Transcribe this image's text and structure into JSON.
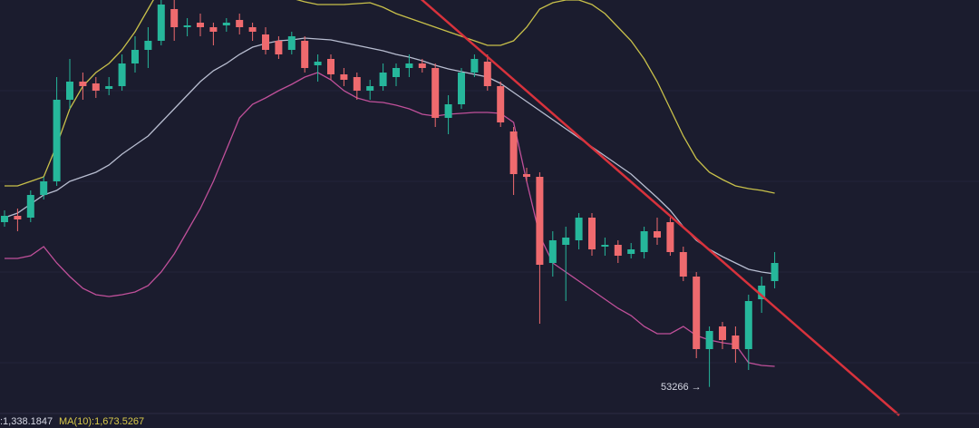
{
  "chart_data": {
    "type": "candlestick",
    "ylim": [
      51000,
      74600
    ],
    "up_color": "#26b79b",
    "down_color": "#ef6a6e",
    "open": [
      62350,
      62700,
      62600,
      63850,
      64600,
      69100,
      70100,
      70000,
      69700,
      69850,
      71100,
      71850,
      72350,
      74100,
      73100,
      73350,
      73100,
      73200,
      73500,
      73100,
      72700,
      72350,
      71850,
      72350,
      71000,
      71350,
      70500,
      70350,
      69600,
      69850,
      70350,
      70850,
      71100,
      70850,
      68100,
      68850,
      70600,
      71200,
      69850,
      67350,
      65000,
      64850,
      60100,
      61100,
      61350,
      62600,
      61000,
      61100,
      60600,
      60700,
      61850,
      62350,
      60700,
      59350,
      55350,
      56600,
      56100,
      55350,
      58100,
      59100
    ],
    "high": [
      63000,
      63100,
      64100,
      64850,
      70350,
      71350,
      70600,
      70350,
      70350,
      71600,
      72600,
      73100,
      74600,
      74600,
      73600,
      73850,
      73350,
      73600,
      73850,
      73350,
      73100,
      72600,
      72850,
      72600,
      71600,
      71600,
      70850,
      70600,
      70200,
      71100,
      71100,
      71600,
      71350,
      71100,
      69350,
      70850,
      71600,
      71600,
      70100,
      67600,
      65350,
      65100,
      61850,
      62100,
      62850,
      62850,
      61500,
      61350,
      61200,
      62100,
      62600,
      62600,
      61000,
      59600,
      56600,
      56850,
      56600,
      58350,
      59350,
      60700
    ],
    "low": [
      62100,
      61850,
      62350,
      63600,
      64350,
      68600,
      69100,
      69200,
      69350,
      69600,
      70600,
      70850,
      72100,
      72350,
      72600,
      72600,
      72100,
      72850,
      72700,
      72350,
      71600,
      71350,
      71600,
      70600,
      70100,
      70200,
      69850,
      69100,
      69100,
      69600,
      69850,
      70350,
      70600,
      67600,
      67200,
      68600,
      70350,
      69600,
      67600,
      63850,
      64600,
      56750,
      59350,
      58000,
      60850,
      60500,
      60500,
      60100,
      60350,
      60350,
      61100,
      60500,
      59100,
      54850,
      53266,
      55350,
      54600,
      54200,
      57350,
      58700
    ],
    "close": [
      62700,
      62500,
      63850,
      64600,
      69100,
      70100,
      69850,
      69600,
      69850,
      71100,
      71850,
      72350,
      74350,
      73100,
      73200,
      73100,
      72850,
      73350,
      73100,
      72850,
      71850,
      71600,
      72600,
      70850,
      71200,
      70500,
      70200,
      69600,
      69850,
      70600,
      70850,
      71100,
      70850,
      68100,
      68850,
      70600,
      71350,
      69850,
      67850,
      65000,
      64850,
      60000,
      61350,
      61500,
      62600,
      60850,
      61100,
      60500,
      60850,
      61850,
      61500,
      60700,
      59350,
      55350,
      56350,
      55850,
      55350,
      58000,
      58850,
      60100
    ],
    "bands": [
      {
        "color": "#c8c04a",
        "values": [
          64350,
          64350,
          64600,
          64850,
          66600,
          68600,
          69850,
          70600,
          71100,
          71850,
          72850,
          74100,
          75350,
          75850,
          76200,
          76350,
          76350,
          76250,
          76000,
          75700,
          75350,
          75000,
          74700,
          74500,
          74350,
          74350,
          74350,
          74400,
          74450,
          74200,
          73850,
          73600,
          73350,
          73100,
          72850,
          72600,
          72350,
          72100,
          72100,
          72350,
          73100,
          74100,
          74450,
          74600,
          74600,
          74350,
          73850,
          73100,
          72350,
          71350,
          70100,
          68600,
          67100,
          65850,
          65100,
          64700,
          64350,
          64200,
          64100,
          63950
        ]
      },
      {
        "color": "#b8bdd0",
        "values": [
          62600,
          62850,
          63350,
          63850,
          64100,
          64600,
          64850,
          65100,
          65500,
          66100,
          66600,
          67100,
          67850,
          68600,
          69350,
          70100,
          70700,
          71100,
          71600,
          72000,
          72200,
          72350,
          72400,
          72500,
          72450,
          72400,
          72250,
          72100,
          71950,
          71800,
          71600,
          71450,
          71250,
          71000,
          70800,
          70650,
          70500,
          70350,
          70000,
          69500,
          69000,
          68500,
          68000,
          67500,
          67000,
          66500,
          66000,
          65500,
          65000,
          64350,
          63700,
          63000,
          62100,
          61350,
          60850,
          60450,
          60100,
          59750,
          59600,
          59500
        ]
      },
      {
        "color": "#c0509a",
        "values": [
          60350,
          60350,
          60500,
          61000,
          60100,
          59350,
          58700,
          58350,
          58250,
          58350,
          58500,
          58850,
          59600,
          60600,
          61850,
          63100,
          64600,
          66350,
          68100,
          68850,
          69200,
          69600,
          69950,
          70350,
          70600,
          70200,
          69600,
          69200,
          69000,
          68950,
          68800,
          68600,
          68300,
          68200,
          68300,
          68350,
          68400,
          68400,
          68350,
          67850,
          64600,
          61600,
          60100,
          59600,
          59100,
          58600,
          58100,
          57600,
          57200,
          56600,
          56200,
          56200,
          56600,
          56100,
          55850,
          55700,
          55600,
          54600,
          54450,
          54400
        ]
      }
    ],
    "low_annotation": "53266 →",
    "status_left": ":1,338.1847",
    "status_ma": "MA(10):1,673.5267"
  }
}
